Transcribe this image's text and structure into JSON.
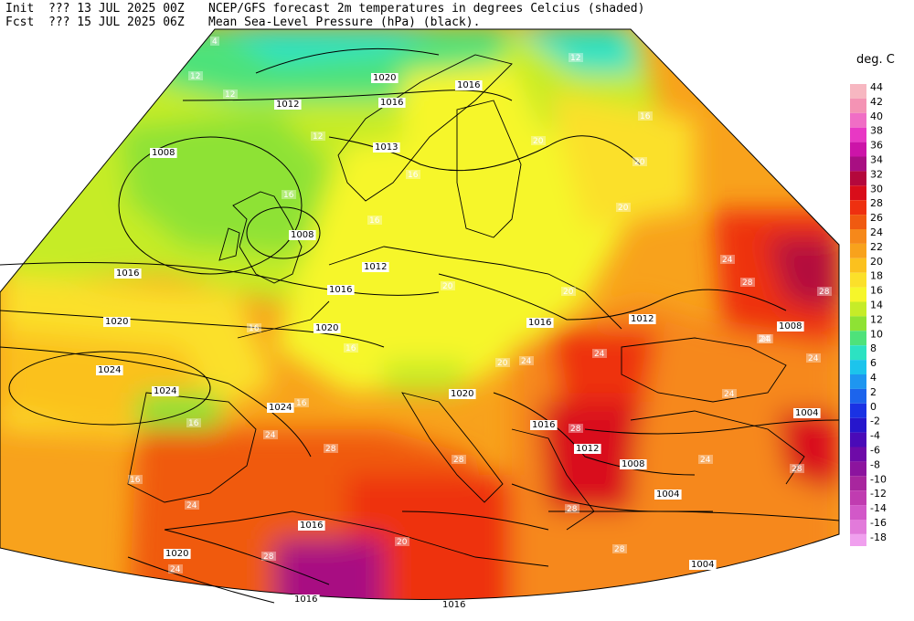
{
  "header": {
    "init_label": "Init",
    "init_value": "??? 13 JUL 2025 00Z",
    "fcst_label": "Fcst",
    "fcst_value": "??? 15 JUL 2025 06Z",
    "title_line1": "NCEP/GFS forecast 2m temperatures in degrees Celcius (shaded)",
    "title_line2": "Mean Sea-Level Pressure (hPa) (black)."
  },
  "legend": {
    "title": "deg. C",
    "entries": [
      {
        "label": "44",
        "color": "#f7b7c1"
      },
      {
        "label": "42",
        "color": "#f493b4"
      },
      {
        "label": "40",
        "color": "#f06ec5"
      },
      {
        "label": "38",
        "color": "#e838c4"
      },
      {
        "label": "36",
        "color": "#cc14a8"
      },
      {
        "label": "34",
        "color": "#a80f82"
      },
      {
        "label": "32",
        "color": "#b4083c"
      },
      {
        "label": "30",
        "color": "#d90d1a"
      },
      {
        "label": "28",
        "color": "#ee3010"
      },
      {
        "label": "26",
        "color": "#f05a10"
      },
      {
        "label": "24",
        "color": "#f6881a"
      },
      {
        "label": "22",
        "color": "#f8a21c"
      },
      {
        "label": "20",
        "color": "#fbc11e"
      },
      {
        "label": "18",
        "color": "#fbe02a"
      },
      {
        "label": "16",
        "color": "#f6f62a"
      },
      {
        "label": "14",
        "color": "#c6ec28"
      },
      {
        "label": "12",
        "color": "#8ee234"
      },
      {
        "label": "10",
        "color": "#4ee27a"
      },
      {
        "label": "8",
        "color": "#2ce2c2"
      },
      {
        "label": "6",
        "color": "#1cc4ec"
      },
      {
        "label": "4",
        "color": "#1e96f0"
      },
      {
        "label": "2",
        "color": "#1c64ec"
      },
      {
        "label": "0",
        "color": "#1a32e4"
      },
      {
        "label": "-2",
        "color": "#2616cc"
      },
      {
        "label": "-4",
        "color": "#4a0ab8"
      },
      {
        "label": "-6",
        "color": "#6e0aa8"
      },
      {
        "label": "-8",
        "color": "#8c149e"
      },
      {
        "label": "-10",
        "color": "#a8269e"
      },
      {
        "label": "-12",
        "color": "#c03cb0"
      },
      {
        "label": "-14",
        "color": "#d258c8"
      },
      {
        "label": "-16",
        "color": "#e27ada"
      },
      {
        "label": "-18",
        "color": "#f0a0ee"
      }
    ]
  },
  "isobar_labels": [
    "1016",
    "1020",
    "1016",
    "1012",
    "1008",
    "1013",
    "1008",
    "1012",
    "1016",
    "1016",
    "1020",
    "1024",
    "1024",
    "1024",
    "1020",
    "1020",
    "1016",
    "1016",
    "1012",
    "1012",
    "1008",
    "1008",
    "1004",
    "1004",
    "1004",
    "1016",
    "1020",
    "1020",
    "1016",
    "1016"
  ],
  "temp_labels": [
    "4",
    "12",
    "12",
    "12",
    "12",
    "16",
    "16",
    "16",
    "20",
    "16",
    "20",
    "16",
    "16",
    "16",
    "20",
    "20",
    "24",
    "20",
    "20",
    "24",
    "28",
    "28",
    "24",
    "24",
    "24",
    "24",
    "28",
    "28",
    "28",
    "24",
    "16",
    "16",
    "20",
    "28",
    "24",
    "28",
    "24",
    "28",
    "28",
    "24",
    "24"
  ]
}
